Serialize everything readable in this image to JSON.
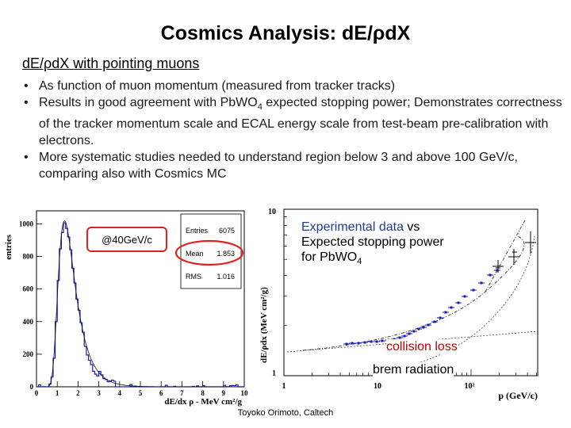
{
  "slide": {
    "title": "Cosmics Analysis: dE/ρdX",
    "subtitle": "dE/ρdX with pointing muons",
    "bullets": [
      "As function of muon momentum (measured from tracker tracks)",
      "Results in good agreement with PbWO",
      "More systematic studies needed to understand region below 3 and above 100 GeV/c, comparing also with Cosmics MC"
    ],
    "bullet2_sub": "4",
    "bullet2_rest": " expected stopping power; Demonstrates correctness of the tracker momentum scale and ECAL energy scale from test-beam pre-calibration with electrons.",
    "footer": "Toyoko Orimoto, Caltech"
  },
  "left_plot": {
    "y_label": "entries",
    "x_label": "dE/dx ρ - MeV cm²/g",
    "x_ticks": [
      "0",
      "1",
      "2",
      "3",
      "4",
      "5",
      "6",
      "7",
      "8",
      "9",
      "10"
    ],
    "y_ticks": [
      "0",
      "200",
      "400",
      "600",
      "800",
      "1000"
    ],
    "tag": "@40GeV/c",
    "stats": {
      "entries_label": "Entries",
      "entries_value": "6075",
      "mean_label": "Mean",
      "mean_value": "1.853",
      "rms_label": "RMS",
      "rms_value": "1.016"
    },
    "highlight_color": "#e02020",
    "hist_color": "#1c1cb4"
  },
  "right_plot": {
    "y_label": "dE/ρdx (MeV cm²/g)",
    "x_label": "p (GeV/c)",
    "y_ticks": [
      "1",
      "10"
    ],
    "x_ticks": [
      "1",
      "10",
      "10²"
    ],
    "annotation_data": "Experimental data",
    "annotation_vs": " vs",
    "annotation_expected": "Expected stopping power",
    "annotation_for": "for PbWO",
    "annotation_for_sub": "4",
    "collision_label": "collision loss",
    "brem_label": "brem radiation",
    "data_color": "#1c1cb4"
  }
}
